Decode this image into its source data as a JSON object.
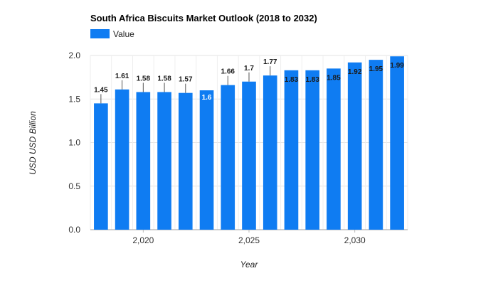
{
  "chart_data": {
    "type": "bar",
    "title": "South Africa Biscuits Market Outlook (2018 to 2032)",
    "xlabel": "Year",
    "ylabel": "USD USD Billion",
    "legend": {
      "entries": [
        "Value"
      ],
      "placement": "top-left"
    },
    "ylim": [
      0,
      2
    ],
    "yticks": [
      "0.0",
      "0.5",
      "1.0",
      "1.5",
      "2.0"
    ],
    "xticks": [
      "2,020",
      "2,025",
      "2,030"
    ],
    "grid": true,
    "series": [
      {
        "name": "Value",
        "color": "#0f7cf2",
        "x": [
          2018,
          2019,
          2020,
          2021,
          2022,
          2023,
          2024,
          2025,
          2026,
          2027,
          2028,
          2029,
          2030,
          2031,
          2032
        ],
        "values": [
          1.45,
          1.61,
          1.58,
          1.58,
          1.57,
          1.6,
          1.66,
          1.7,
          1.77,
          1.83,
          1.83,
          1.85,
          1.92,
          1.95,
          1.99
        ],
        "labels": [
          "1.45",
          "1.61",
          "1.58",
          "1.58",
          "1.57",
          "1.6",
          "1.66",
          "1.7",
          "1.77",
          "1.83",
          "1.83",
          "1.85",
          "1.92",
          "1.95",
          "1.99"
        ]
      }
    ]
  }
}
